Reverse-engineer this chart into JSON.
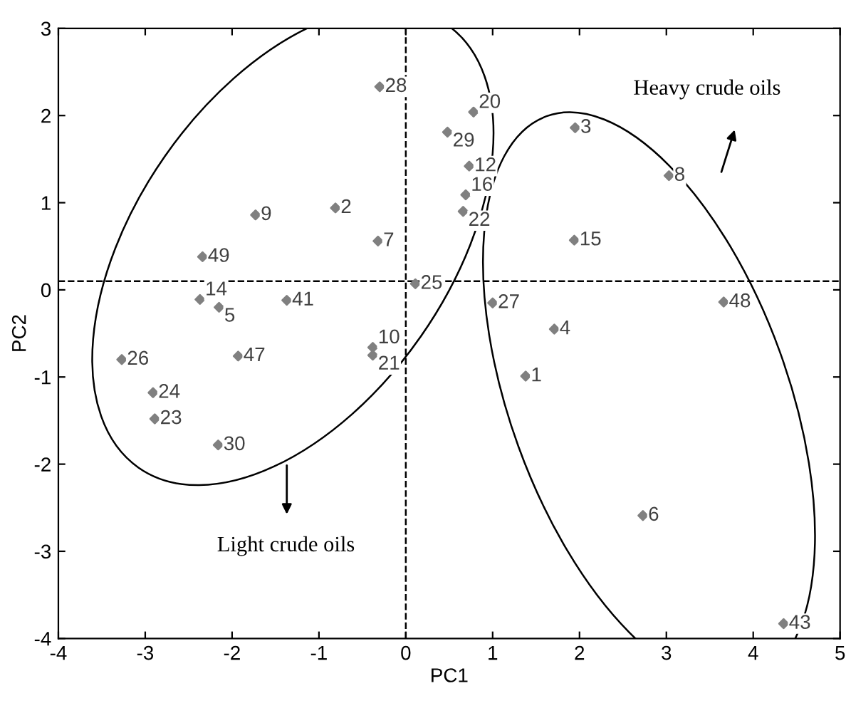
{
  "chart_data": {
    "type": "scatter",
    "xlabel": "PC1",
    "ylabel": "PC2",
    "xlim": [
      -4,
      5
    ],
    "ylim": [
      -4,
      3
    ],
    "xticks": [
      -4,
      -3,
      -2,
      -1,
      0,
      1,
      2,
      3,
      4,
      5
    ],
    "yticks": [
      -4,
      -3,
      -2,
      -1,
      0,
      1,
      2,
      3
    ],
    "grid": false,
    "marker": "diamond",
    "series": [
      {
        "color": "#808080",
        "x": [
          1.38,
          -0.81,
          1.95,
          1.71,
          -2.15,
          2.73,
          -0.32,
          3.03,
          -1.73,
          -0.38,
          -1.37,
          0.73,
          4.35,
          -2.37,
          1.94,
          0.69,
          -1.93,
          3.66,
          -2.34,
          0.78,
          -0.38,
          0.66,
          -2.89,
          -2.91,
          0.11,
          -3.27,
          1.0,
          -0.3,
          0.48,
          -2.16
        ],
        "values": [
          -0.99,
          0.94,
          1.86,
          -0.45,
          -0.2,
          -2.59,
          0.56,
          1.31,
          0.86,
          -0.66,
          -0.12,
          1.42,
          -3.83,
          -0.11,
          0.57,
          1.09,
          -0.76,
          -0.14,
          0.38,
          2.04,
          -0.75,
          0.9,
          -1.48,
          -1.18,
          0.07,
          -0.8,
          -0.15,
          2.33,
          1.81,
          -1.78
        ]
      }
    ],
    "ref_lines": [
      {
        "axis": "x",
        "value": 0,
        "line_style": "dashed",
        "color": "#000000"
      },
      {
        "axis": "y",
        "value": 0.1,
        "line_style": "dashed",
        "color": "#000000"
      }
    ],
    "annotations": [
      {
        "text": "1",
        "x": 1.38,
        "y": -0.99
      },
      {
        "text": "2",
        "x": -0.81,
        "y": 0.94
      },
      {
        "text": "3",
        "x": 1.95,
        "y": 1.86
      },
      {
        "text": "4",
        "x": 1.71,
        "y": -0.45
      },
      {
        "text": "5",
        "x": -2.15,
        "y": -0.2
      },
      {
        "text": "6",
        "x": 2.73,
        "y": -2.59
      },
      {
        "text": "7",
        "x": -0.32,
        "y": 0.56
      },
      {
        "text": "8",
        "x": 3.03,
        "y": 1.31
      },
      {
        "text": "9",
        "x": -1.73,
        "y": 0.86
      },
      {
        "text": "10",
        "x": -0.38,
        "y": -0.66
      },
      {
        "text": "41",
        "x": -1.37,
        "y": -0.12
      },
      {
        "text": "12",
        "x": 0.73,
        "y": 1.42
      },
      {
        "text": "43",
        "x": 4.35,
        "y": -3.83
      },
      {
        "text": "14",
        "x": -2.37,
        "y": -0.11
      },
      {
        "text": "15",
        "x": 1.94,
        "y": 0.57
      },
      {
        "text": "16",
        "x": 0.69,
        "y": 1.09
      },
      {
        "text": "47",
        "x": -1.93,
        "y": -0.76
      },
      {
        "text": "48",
        "x": 3.66,
        "y": -0.14
      },
      {
        "text": "49",
        "x": -2.34,
        "y": 0.38
      },
      {
        "text": "20",
        "x": 0.78,
        "y": 2.04
      },
      {
        "text": "21",
        "x": -0.38,
        "y": -0.75
      },
      {
        "text": "22",
        "x": 0.66,
        "y": 0.9
      },
      {
        "text": "23",
        "x": -2.89,
        "y": -1.48
      },
      {
        "text": "24",
        "x": -2.91,
        "y": -1.18
      },
      {
        "text": "25",
        "x": 0.11,
        "y": 0.07
      },
      {
        "text": "26",
        "x": -3.27,
        "y": -0.8
      },
      {
        "text": "27",
        "x": 1.0,
        "y": -0.15
      },
      {
        "text": "28",
        "x": -0.3,
        "y": 2.33
      },
      {
        "text": "29",
        "x": 0.48,
        "y": 1.81
      },
      {
        "text": "30",
        "x": -2.16,
        "y": -1.78
      },
      "Light crude oils",
      "Heavy crude oils"
    ]
  }
}
